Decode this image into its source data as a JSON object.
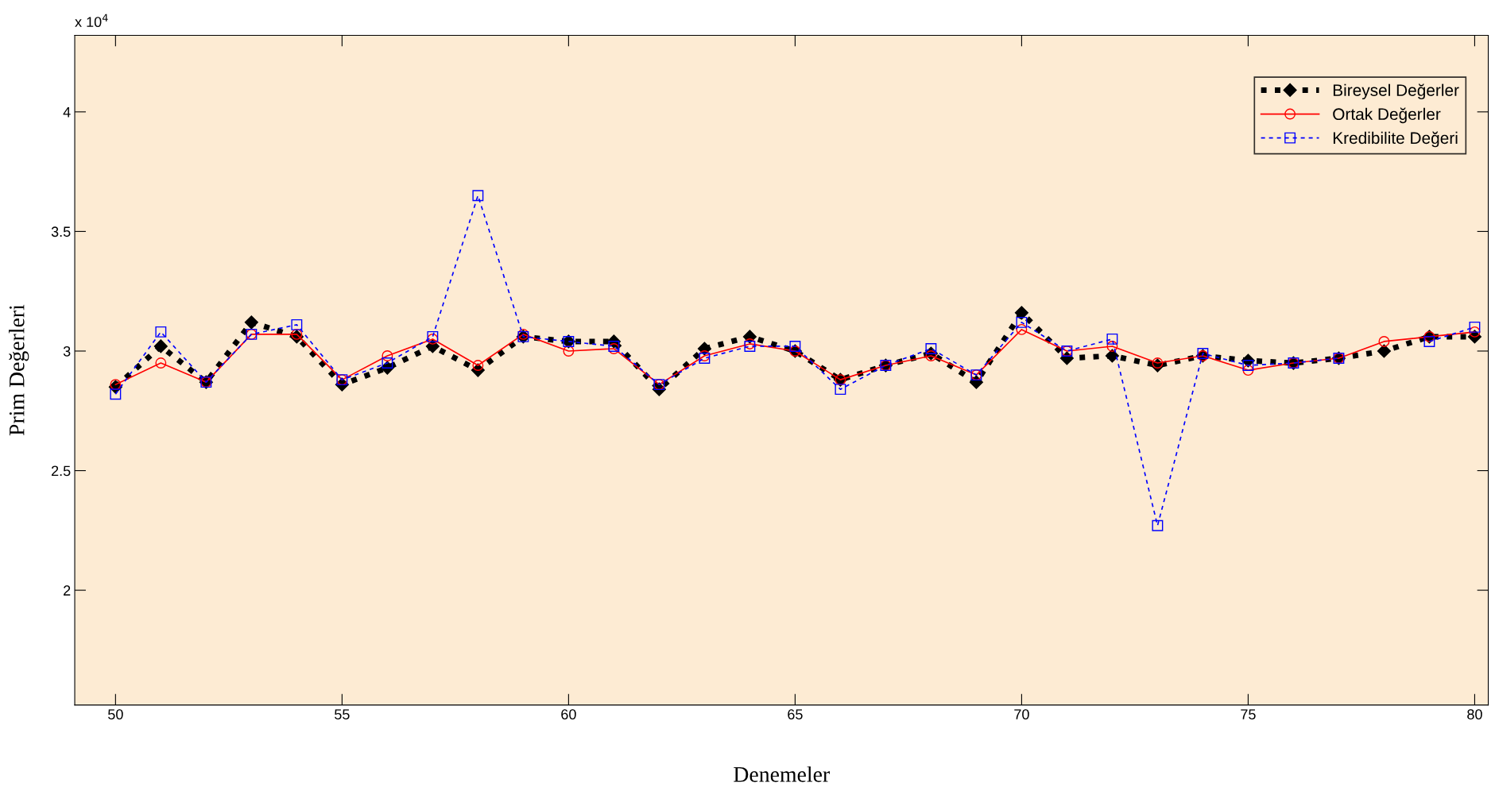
{
  "chart_data": {
    "type": "line",
    "xlabel": "Denemeler",
    "ylabel": "Prim Değerleri",
    "annotations": [
      "x 10$^{4}$"
    ],
    "x": [
      50,
      51,
      52,
      53,
      54,
      55,
      56,
      57,
      58,
      59,
      60,
      61,
      62,
      63,
      64,
      65,
      66,
      67,
      68,
      69,
      70,
      71,
      72,
      73,
      74,
      75,
      76,
      77,
      78,
      79,
      80
    ],
    "series": [
      {
        "name": "Bireysel Değerler",
        "color": "#000000",
        "marker": "diamond",
        "line_style": "dotted",
        "values": [
          2.85,
          3.02,
          2.87,
          3.12,
          3.06,
          2.86,
          2.93,
          3.02,
          2.92,
          3.06,
          3.04,
          3.04,
          2.84,
          3.01,
          3.06,
          3.0,
          2.88,
          2.94,
          2.99,
          2.87,
          3.16,
          2.97,
          2.98,
          2.94,
          2.98,
          2.96,
          2.95,
          2.97,
          3.0,
          3.06,
          3.06
        ]
      },
      {
        "name": "Ortak Değerler",
        "color": "#ff0000",
        "marker": "circle",
        "line_style": "solid",
        "values": [
          2.86,
          2.95,
          2.87,
          3.07,
          3.07,
          2.88,
          2.98,
          3.05,
          2.94,
          3.07,
          3.0,
          3.01,
          2.86,
          2.98,
          3.03,
          3.0,
          2.88,
          2.94,
          2.98,
          2.9,
          3.09,
          3.0,
          3.02,
          2.95,
          2.98,
          2.92,
          2.95,
          2.97,
          3.04,
          3.06,
          3.08
        ]
      },
      {
        "name": "Kredibilite Değeri",
        "color": "#0000ff",
        "marker": "square",
        "line_style": "dashed",
        "values": [
          2.82,
          3.08,
          2.87,
          3.07,
          3.11,
          2.88,
          2.95,
          3.06,
          3.65,
          3.06,
          3.04,
          3.02,
          2.86,
          2.97,
          3.02,
          3.02,
          2.84,
          2.94,
          3.01,
          2.9,
          3.12,
          3.0,
          3.05,
          2.27,
          2.99,
          2.94,
          2.95,
          2.97,
          null,
          3.04,
          3.1
        ]
      }
    ],
    "xlim": [
      49.1,
      80.3
    ],
    "ylim": [
      1.52,
      4.32
    ],
    "xticks": [
      50,
      55,
      60,
      65,
      70,
      75,
      80
    ],
    "yticks": [
      2,
      2.5,
      3,
      3.5,
      4
    ],
    "legend": "top right",
    "grid": false
  }
}
